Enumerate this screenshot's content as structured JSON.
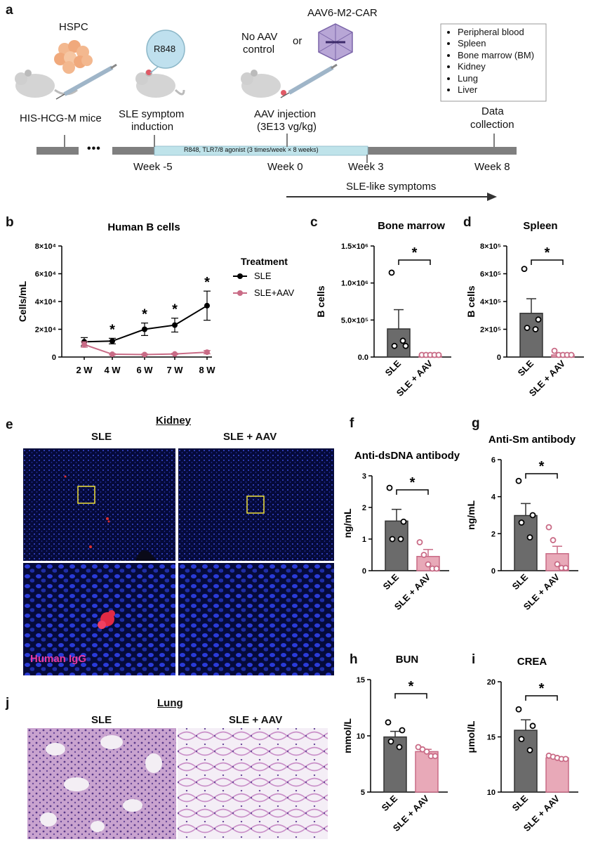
{
  "panel_a": {
    "label": "a",
    "hspc": "HSPC",
    "mice": "HIS-HCG-M mice",
    "r848_bubble": "R848",
    "induction_line1": "SLE symptom",
    "induction_line2": "induction",
    "no_aav_line1": "No AAV",
    "no_aav_line2": "control",
    "or": "or",
    "vector": "AAV6-M2-CAR",
    "injection_line1": "AAV injection",
    "injection_line2": "(3E13 vg/kg)",
    "data_line1": "Data",
    "data_line2": "collection",
    "timeline_bar": "R848, TLR7/8 agonist (3 times/week  × 8 weeks)",
    "ellipsis": "•••",
    "weeks": [
      "Week -5",
      "Week 0",
      "Week 3",
      "Week 8"
    ],
    "symptoms": "SLE-like symptoms",
    "tissues": [
      "Peripheral blood",
      "Spleen",
      "Bone marrow (BM)",
      "Kidney",
      "Lung",
      "Liver"
    ]
  },
  "panel_e": {
    "label": "e",
    "title": "Kidney",
    "col1": "SLE",
    "col2": "SLE + AAV",
    "stain": "Human IgG"
  },
  "panel_j": {
    "label": "j",
    "title": "Lung",
    "col1": "SLE",
    "col2": "SLE + AAV"
  },
  "chart_data": [
    {
      "id": "b",
      "type": "line",
      "title": "Human B cells",
      "xlabel": "",
      "ylabel": "Cells/mL",
      "categories": [
        "2 W",
        "4 W",
        "6 W",
        "7 W",
        "8 W"
      ],
      "yticks": [
        "0",
        "2×10⁴",
        "4×10⁴",
        "6×10⁴",
        "8×10⁴"
      ],
      "ylim": [
        0,
        80000
      ],
      "legend_title": "Treatment",
      "legend_position": "right",
      "series": [
        {
          "name": "SLE",
          "color": "#000000",
          "values": [
            11000,
            11500,
            20000,
            23000,
            37000
          ],
          "errors": [
            3000,
            2000,
            4500,
            5000,
            10500
          ]
        },
        {
          "name": "SLE+AAV",
          "color": "#c96b86",
          "values": [
            9000,
            2000,
            1800,
            2200,
            3500
          ],
          "errors": [
            2000,
            500,
            400,
            500,
            1200
          ]
        }
      ],
      "significance": [
        "",
        "*",
        "*",
        "*",
        "*"
      ]
    },
    {
      "id": "c",
      "type": "bar",
      "title": "Bone marrow",
      "ylabel": "B cells",
      "categories": [
        "SLE",
        "SLE + AAV"
      ],
      "yticks": [
        "0.0",
        "5.0×10⁵",
        "1.0×10⁶",
        "1.5×10⁶"
      ],
      "ylim": [
        0,
        1500000
      ],
      "values": [
        380000,
        10000
      ],
      "errors": [
        260000,
        5000
      ],
      "points": [
        [
          1140000,
          150000,
          150000,
          220000
        ],
        [
          10000,
          10000,
          10000,
          10000,
          10000
        ]
      ],
      "significance": "*"
    },
    {
      "id": "d",
      "type": "bar",
      "title": "Spleen",
      "ylabel": "B cells",
      "categories": [
        "SLE",
        "SLE + AAV"
      ],
      "yticks": [
        "0",
        "2×10⁵",
        "4×10⁵",
        "6×10⁵",
        "8×10⁵"
      ],
      "ylim": [
        0,
        800000
      ],
      "values": [
        315000,
        15000
      ],
      "errors": [
        105000,
        12000
      ],
      "points": [
        [
          635000,
          270000,
          210000,
          200000
        ],
        [
          45000,
          15000,
          10000,
          5000,
          5000
        ]
      ],
      "significance": "*"
    },
    {
      "id": "f",
      "type": "bar",
      "title": "Anti-dsDNA antibody",
      "ylabel": "ng/mL",
      "categories": [
        "SLE",
        "SLE + AAV"
      ],
      "yticks": [
        "0",
        "1",
        "2",
        "3"
      ],
      "ylim": [
        0,
        3
      ],
      "values": [
        1.57,
        0.45
      ],
      "errors": [
        0.37,
        0.22
      ],
      "points": [
        [
          2.62,
          1.55,
          1.0,
          1.0
        ],
        [
          0.9,
          0.5,
          0.2,
          0.05,
          0.05
        ]
      ],
      "significance": "*"
    },
    {
      "id": "g",
      "type": "bar",
      "title": "Anti-Sm antibody",
      "ylabel": "ng/mL",
      "categories": [
        "SLE",
        "SLE + AAV"
      ],
      "yticks": [
        "0",
        "2",
        "4",
        "6"
      ],
      "ylim": [
        0,
        6
      ],
      "values": [
        2.98,
        0.92
      ],
      "errors": [
        0.65,
        0.4
      ],
      "points": [
        [
          4.85,
          3.0,
          2.6,
          1.8
        ],
        [
          2.35,
          1.65,
          0.35,
          0.15,
          0.15
        ]
      ],
      "significance": "*"
    },
    {
      "id": "h",
      "type": "bar",
      "title": "BUN",
      "ylabel": "mmol/L",
      "categories": [
        "SLE",
        "SLE + AAV"
      ],
      "yticks": [
        "5",
        "10",
        "15"
      ],
      "ylim": [
        5,
        15
      ],
      "values": [
        9.9,
        8.6
      ],
      "errors": [
        0.5,
        0.2
      ],
      "points": [
        [
          11.2,
          10.5,
          9.5,
          9.0
        ],
        [
          9.0,
          8.8,
          8.6,
          8.2,
          8.2
        ]
      ],
      "significance": "*"
    },
    {
      "id": "i",
      "type": "bar",
      "title": "CREA",
      "ylabel": "μmol/L",
      "categories": [
        "SLE",
        "SLE + AAV"
      ],
      "yticks": [
        "10",
        "15",
        "20"
      ],
      "ylim": [
        10,
        20
      ],
      "values": [
        15.6,
        13.1
      ],
      "errors": [
        0.95,
        0.1
      ],
      "points": [
        [
          17.5,
          16.0,
          14.8,
          13.8
        ],
        [
          13.3,
          13.2,
          13.1,
          13.0,
          13.0
        ]
      ],
      "significance": "*"
    }
  ],
  "colors": {
    "sle": "#6b6b6b",
    "aav": "#e8a9b8",
    "aav_stroke": "#c96b86",
    "timeline": "#7f7f7f",
    "timeline_highlight": "#bfe3ea"
  }
}
